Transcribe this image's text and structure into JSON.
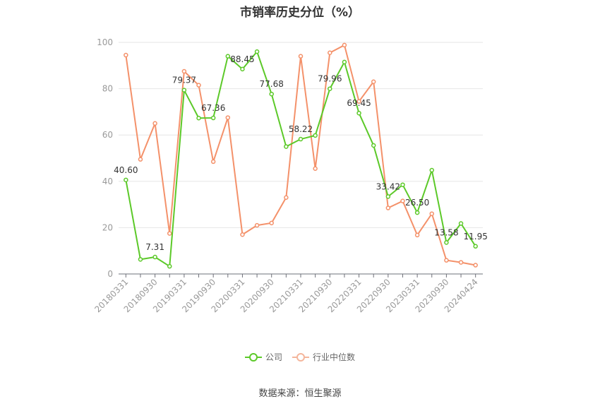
{
  "chart_data": {
    "type": "line",
    "title": "市销率历史分位（%）",
    "ylim": [
      0,
      100
    ],
    "yticks": [
      0,
      20,
      40,
      60,
      80,
      100
    ],
    "grid": true,
    "legend_position": "bottom",
    "x_tick_labels": [
      "20180331",
      "20180930",
      "20190331",
      "20190930",
      "20200331",
      "20200930",
      "20210331",
      "20210930",
      "20220331",
      "20220930",
      "20230331",
      "20230930",
      "20240424"
    ],
    "x": [
      "20180331",
      "20180630",
      "20180930",
      "20181231",
      "20190331",
      "20190630",
      "20190930",
      "20191231",
      "20200331",
      "20200630",
      "20200930",
      "20201231",
      "20210331",
      "20210630",
      "20210930",
      "20211231",
      "20220331",
      "20220630",
      "20220930",
      "20221231",
      "20230331",
      "20230630",
      "20230930",
      "20231231",
      "20240424"
    ],
    "series": [
      {
        "name": "公司",
        "color": "#5cc929",
        "values": [
          40.6,
          6.3,
          7.31,
          3.3,
          79.37,
          67.3,
          67.36,
          94.0,
          88.45,
          96.0,
          77.68,
          55.0,
          58.22,
          59.8,
          79.96,
          91.5,
          69.45,
          55.5,
          33.42,
          38.5,
          26.5,
          44.8,
          13.58,
          21.8,
          11.95
        ],
        "data_labels": {
          "0": "40.60",
          "2": "7.31",
          "4": "79.37",
          "6": "67.36",
          "8": "88.45",
          "10": "77.68",
          "12": "58.22",
          "14": "79.96",
          "16": "69.45",
          "18": "33.42",
          "20": "26.50",
          "22": "13.58",
          "24": "11.95"
        }
      },
      {
        "name": "行业中位数",
        "color": "#f4916a",
        "values": [
          94.5,
          49.5,
          65.0,
          17.5,
          87.5,
          81.5,
          48.5,
          67.5,
          17.0,
          21.0,
          22.0,
          33.0,
          94.0,
          45.5,
          95.5,
          98.8,
          74.5,
          83.0,
          28.5,
          31.5,
          16.8,
          26.0,
          5.9,
          5.0,
          3.8
        ]
      }
    ]
  },
  "footer": {
    "source": "数据来源：恒生聚源"
  }
}
